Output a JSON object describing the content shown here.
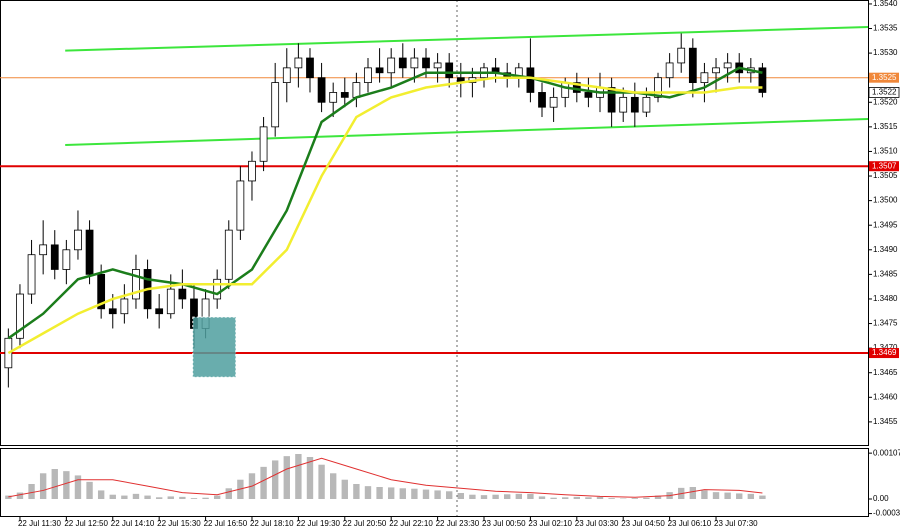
{
  "chart_data": [
    {
      "type": "candlestick",
      "x": [
        0,
        1,
        2,
        3,
        4,
        5,
        6,
        7,
        8,
        9,
        10,
        11,
        12,
        13,
        14,
        15,
        16,
        17,
        18,
        19,
        20,
        21,
        22,
        23,
        24,
        25,
        26,
        27,
        28,
        29,
        30,
        31,
        32,
        33,
        34,
        35,
        36,
        37,
        38,
        39,
        40,
        41,
        42,
        43,
        44,
        45,
        46,
        47,
        48,
        49,
        50,
        51,
        52,
        53,
        54,
        55,
        56,
        57,
        58,
        59,
        60,
        61,
        62,
        63,
        64,
        65
      ],
      "open": [
        1.3466,
        1.3472,
        1.3481,
        1.3489,
        1.3491,
        1.3486,
        1.349,
        1.3494,
        1.3485,
        1.3478,
        1.3477,
        1.348,
        1.3486,
        1.3478,
        1.3477,
        1.3482,
        1.348,
        1.3474,
        1.348,
        1.3484,
        1.3494,
        1.3504,
        1.3508,
        1.3515,
        1.3524,
        1.3527,
        1.3529,
        1.3525,
        1.352,
        1.3522,
        1.3521,
        1.3524,
        1.3527,
        1.3526,
        1.3529,
        1.3527,
        1.3529,
        1.3527,
        1.3528,
        1.3525,
        1.3524,
        1.3525,
        1.3527,
        1.3526,
        1.3525,
        1.3527,
        1.3522,
        1.3519,
        1.3521,
        1.3524,
        1.3522,
        1.3521,
        1.3523,
        1.3518,
        1.3521,
        1.3518,
        1.3521,
        1.3525,
        1.3528,
        1.3531,
        1.3524,
        1.3526,
        1.3527,
        1.3528,
        1.3526,
        1.3527
      ],
      "high": [
        1.3474,
        1.3483,
        1.3492,
        1.3496,
        1.3494,
        1.3492,
        1.3498,
        1.3496,
        1.3487,
        1.3481,
        1.3483,
        1.3489,
        1.3488,
        1.3481,
        1.3485,
        1.3486,
        1.3483,
        1.3482,
        1.3486,
        1.3496,
        1.3507,
        1.351,
        1.3517,
        1.3528,
        1.3531,
        1.3532,
        1.3531,
        1.3528,
        1.3524,
        1.3525,
        1.3526,
        1.3529,
        1.3531,
        1.3531,
        1.3532,
        1.3531,
        1.3531,
        1.353,
        1.353,
        1.3528,
        1.3527,
        1.3528,
        1.3529,
        1.3528,
        1.3528,
        1.3533,
        1.3524,
        1.3523,
        1.3525,
        1.3526,
        1.3525,
        1.3526,
        1.3525,
        1.3523,
        1.3524,
        1.3523,
        1.3526,
        1.353,
        1.3534,
        1.3533,
        1.3528,
        1.3529,
        1.353,
        1.353,
        1.3529,
        1.3528
      ],
      "low": [
        1.3462,
        1.347,
        1.3479,
        1.3485,
        1.3484,
        1.3483,
        1.3488,
        1.3483,
        1.3476,
        1.3474,
        1.3475,
        1.3478,
        1.3476,
        1.3474,
        1.3476,
        1.3478,
        1.347,
        1.3472,
        1.3478,
        1.3482,
        1.3492,
        1.35,
        1.3506,
        1.3513,
        1.352,
        1.3523,
        1.3522,
        1.3518,
        1.3517,
        1.3519,
        1.3519,
        1.3522,
        1.3524,
        1.3523,
        1.3525,
        1.3524,
        1.3525,
        1.3524,
        1.3523,
        1.3521,
        1.3521,
        1.3523,
        1.3524,
        1.3523,
        1.3523,
        1.352,
        1.3517,
        1.3516,
        1.3519,
        1.352,
        1.3519,
        1.3518,
        1.3515,
        1.3516,
        1.3515,
        1.3517,
        1.352,
        1.3523,
        1.3526,
        1.3521,
        1.352,
        1.3522,
        1.3524,
        1.3524,
        1.3524,
        1.3521
      ],
      "close": [
        1.3472,
        1.3481,
        1.3489,
        1.3491,
        1.3486,
        1.349,
        1.3494,
        1.3485,
        1.3478,
        1.3477,
        1.348,
        1.3486,
        1.3478,
        1.3477,
        1.3482,
        1.348,
        1.3474,
        1.348,
        1.3484,
        1.3494,
        1.3504,
        1.3508,
        1.3515,
        1.3524,
        1.3527,
        1.3529,
        1.3525,
        1.352,
        1.3522,
        1.3521,
        1.3524,
        1.3527,
        1.3526,
        1.3529,
        1.3527,
        1.3529,
        1.3527,
        1.3528,
        1.3525,
        1.3524,
        1.3525,
        1.3527,
        1.3526,
        1.3525,
        1.3527,
        1.3522,
        1.3519,
        1.3521,
        1.3524,
        1.3522,
        1.3521,
        1.3523,
        1.3518,
        1.3521,
        1.3518,
        1.3521,
        1.3525,
        1.3528,
        1.3531,
        1.3524,
        1.3526,
        1.3527,
        1.3528,
        1.3526,
        1.3527,
        1.3522
      ],
      "lines": [
        {
          "color": "#1b7d1b",
          "x": [
            0,
            3,
            6,
            9,
            12,
            15,
            18,
            21,
            24,
            27,
            30,
            33,
            36,
            39,
            42,
            45,
            48,
            51,
            54,
            57,
            60,
            63,
            65
          ],
          "values": [
            1.3472,
            1.3477,
            1.3484,
            1.3486,
            1.3484,
            1.3483,
            1.3481,
            1.3486,
            1.3498,
            1.3516,
            1.3521,
            1.3523,
            1.3526,
            1.3526,
            1.3526,
            1.3525,
            1.3523,
            1.3522,
            1.3522,
            1.3521,
            1.3523,
            1.3527,
            1.3526
          ]
        },
        {
          "color": "#f2ee30",
          "x": [
            0,
            3,
            6,
            9,
            12,
            15,
            18,
            21,
            24,
            27,
            30,
            33,
            36,
            39,
            42,
            45,
            48,
            51,
            54,
            57,
            60,
            63,
            65
          ],
          "values": [
            1.3469,
            1.3473,
            1.3477,
            1.348,
            1.3482,
            1.3483,
            1.3483,
            1.3483,
            1.349,
            1.3505,
            1.3517,
            1.3521,
            1.3523,
            1.3524,
            1.3525,
            1.3525,
            1.3524,
            1.3523,
            1.3522,
            1.3522,
            1.3522,
            1.3523,
            1.3523
          ]
        }
      ],
      "trendlines": [
        {
          "color": "#3ce63c",
          "x": [
            4.9,
            74.1
          ],
          "values": [
            1.35305,
            1.35353
          ]
        },
        {
          "color": "#3ce63c",
          "x": [
            4.9,
            74.1
          ],
          "values": [
            1.35113,
            1.35166
          ]
        }
      ],
      "levels": [
        {
          "value": 1.3525,
          "color": "#f0883a"
        },
        {
          "value": 1.3507,
          "color": "#e00000"
        },
        {
          "value": 1.3469,
          "color": "#e00000"
        }
      ],
      "current": 1.3522,
      "highlight": {
        "x": [
          15.9,
          19.6
        ],
        "y": [
          1.34641,
          1.34763
        ],
        "color": "#4f9f9f"
      },
      "xlim": [
        -0.72,
        74.1
      ],
      "ylim": [
        1.34503,
        1.35408
      ],
      "yticks": [
        {
          "value": 1.354,
          "label": "1.3540"
        },
        1.3535,
        {
          "value": 1.353,
          "label": "1.3530"
        },
        1.3525,
        {
          "value": 1.352,
          "label": "1.3520"
        },
        1.3515,
        {
          "value": 1.351,
          "label": "1.3510"
        },
        1.3505,
        {
          "value": 1.35,
          "label": "1.3500"
        },
        1.3495,
        {
          "value": 1.349,
          "label": "1.3490"
        },
        1.3485,
        {
          "value": 1.348,
          "label": "1.3480"
        },
        1.3475,
        {
          "value": 1.347,
          "label": "1.3470"
        },
        1.3465,
        {
          "value": 1.346,
          "label": "1.3460"
        },
        1.3455
      ],
      "xticks": [
        {
          "value": 1,
          "label": "22 Jul 11:30"
        },
        {
          "value": 5,
          "label": "22 Jul 12:50"
        },
        {
          "value": 9,
          "label": "22 Jul 14:10"
        },
        {
          "value": 13,
          "label": "22 Jul 15:30"
        },
        {
          "value": 17,
          "label": "22 Jul 16:50"
        },
        {
          "value": 21,
          "label": "22 Jul 18:10"
        },
        {
          "value": 25,
          "label": "22 Jul 19:30"
        },
        {
          "value": 29,
          "label": "22 Jul 20:50"
        },
        {
          "value": 33,
          "label": "22 Jul 22:10"
        },
        {
          "value": 37,
          "label": "22 Jul 23:30"
        },
        {
          "value": 41,
          "label": "23 Jul 00:50"
        },
        {
          "value": 45,
          "label": "23 Jul 02:10"
        },
        {
          "value": 49,
          "label": "23 Jul 03:30"
        },
        {
          "value": 53,
          "label": "23 Jul 04:50"
        },
        {
          "value": 57,
          "label": "23 Jul 06:10"
        },
        {
          "value": 61,
          "label": "23 Jul 07:30"
        }
      ]
    },
    {
      "type": "bar",
      "x": [
        0,
        1,
        2,
        3,
        4,
        5,
        6,
        7,
        8,
        9,
        10,
        11,
        12,
        13,
        14,
        15,
        16,
        17,
        18,
        19,
        20,
        21,
        22,
        23,
        24,
        25,
        26,
        27,
        28,
        29,
        30,
        31,
        32,
        33,
        34,
        35,
        36,
        37,
        38,
        39,
        40,
        41,
        42,
        43,
        44,
        45,
        46,
        47,
        48,
        49,
        50,
        51,
        52,
        53,
        54,
        55,
        56,
        57,
        58,
        59,
        60,
        61,
        62,
        63,
        64,
        65
      ],
      "values": [
        8e-05,
        0.00015,
        0.00035,
        0.0006,
        0.0007,
        0.00065,
        0.00055,
        0.0004,
        0.0002,
        0.0001,
        8e-05,
        0.00012,
        8e-05,
        4e-05,
        6e-05,
        5e-05,
        2e-05,
        3e-05,
        8e-05,
        0.00025,
        0.00045,
        0.0006,
        0.00075,
        0.0009,
        0.001,
        0.00105,
        0.00098,
        0.0008,
        0.0006,
        0.00045,
        0.00035,
        0.0003,
        0.00028,
        0.00027,
        0.00025,
        0.00024,
        0.00022,
        0.0002,
        0.00018,
        0.00014,
        0.0001,
        9e-05,
        0.0001,
        0.00011,
        0.00012,
        0.00012,
        6e-05,
        3e-05,
        4e-05,
        5e-05,
        4e-05,
        5e-05,
        2e-05,
        1e-05,
        2e-05,
        3e-05,
        8e-05,
        0.00016,
        0.00026,
        0.00028,
        0.0002,
        0.00016,
        0.00015,
        0.00013,
        0.00012,
        8e-05
      ],
      "color": "#b8b8b8",
      "signal": {
        "color": "#e03030",
        "x": [
          0,
          3,
          6,
          9,
          12,
          15,
          18,
          21,
          24,
          27,
          30,
          33,
          36,
          39,
          42,
          45,
          48,
          51,
          54,
          57,
          60,
          63,
          65
        ],
        "values": [
          5e-05,
          0.0002,
          0.00045,
          0.00045,
          0.0003,
          0.00015,
          0.0001,
          0.0003,
          0.0007,
          0.00095,
          0.0007,
          0.00045,
          0.00032,
          0.00025,
          0.00018,
          0.00015,
          0.0001,
          6e-05,
          4e-05,
          8e-05,
          0.00022,
          0.0002,
          0.00014
        ]
      },
      "xlim": [
        -0.72,
        74.1
      ],
      "ylim": [
        -0.00042,
        0.00119
      ],
      "yticks": [
        0.00107,
        {
          "value": 0,
          "label": "0.00"
        },
        -0.00034
      ]
    }
  ]
}
